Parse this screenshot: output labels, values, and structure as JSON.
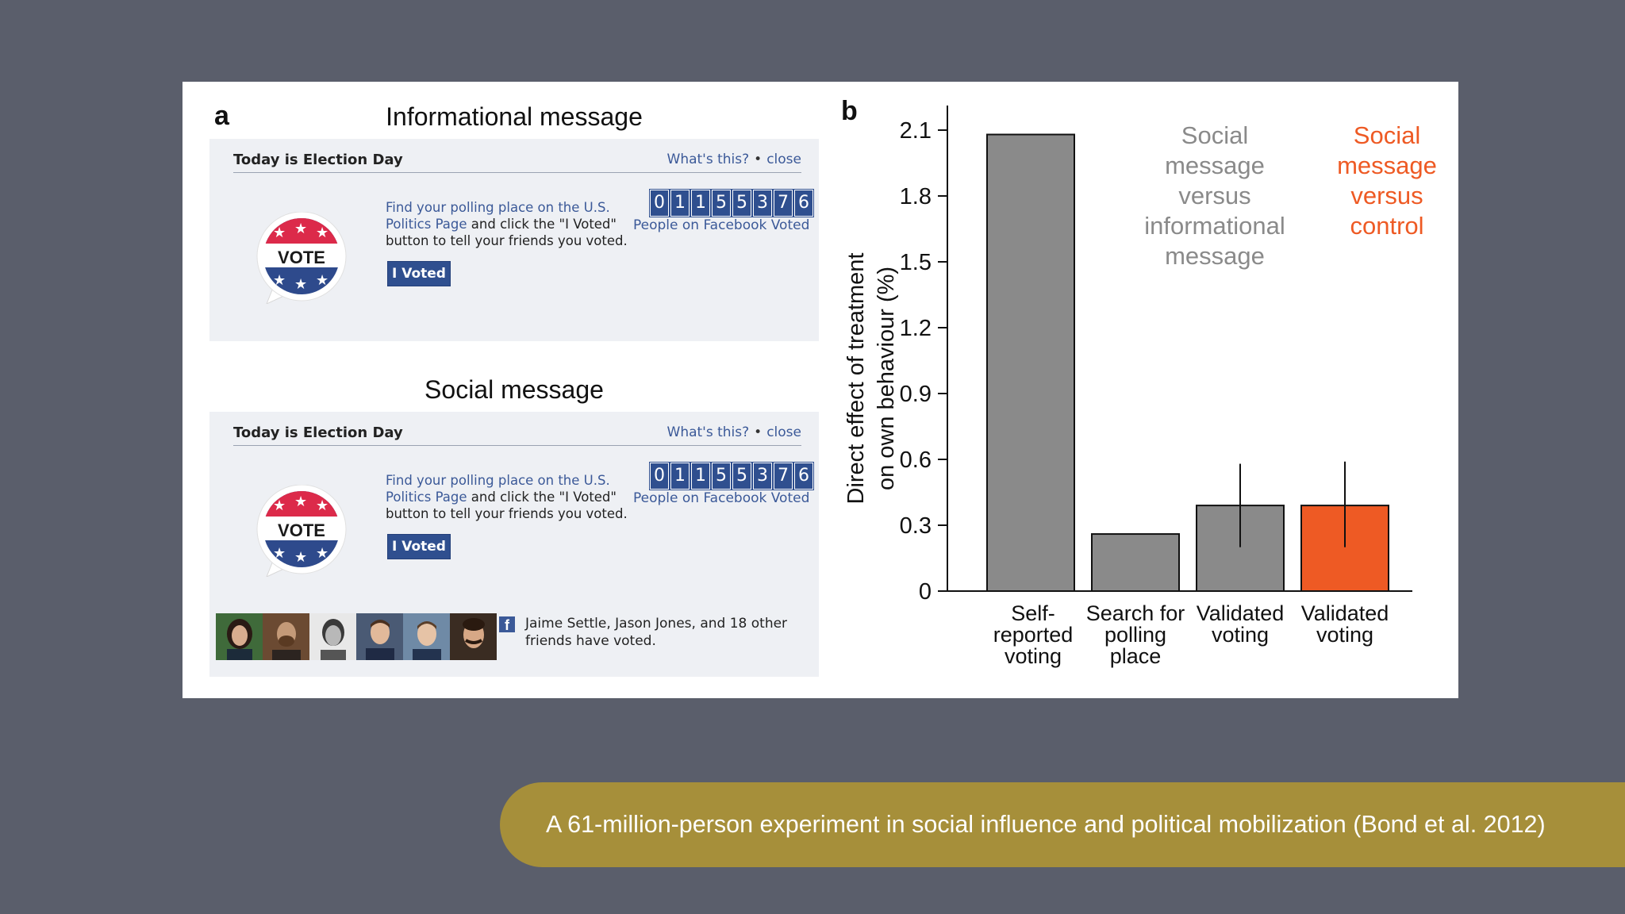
{
  "panel_a": {
    "letter": "a",
    "informational": {
      "title": "Informational message",
      "header": "Today is Election Day",
      "whats_this": "What's this?",
      "close": "close",
      "find_link": "Find your polling place on the U.S. Politics Page",
      "find_rest": " and click the \"I Voted\" button to tell your friends you voted.",
      "button": "I Voted",
      "badge": "VOTE",
      "counter_digits": [
        "0",
        "1",
        "1",
        "5",
        "5",
        "3",
        "7",
        "6"
      ],
      "people_text": "People on Facebook Voted"
    },
    "social": {
      "title": "Social message",
      "header": "Today is Election Day",
      "whats_this": "What's this?",
      "close": "close",
      "find_link": "Find your polling place on the U.S. Politics Page",
      "find_rest": " and click the \"I Voted\" button to tell your friends you voted.",
      "button": "I Voted",
      "badge": "VOTE",
      "counter_digits": [
        "0",
        "1",
        "1",
        "5",
        "5",
        "3",
        "7",
        "6"
      ],
      "people_text": "People on Facebook Voted",
      "friends_text": "Jaime Settle, Jason Jones, and 18 other friends have voted.",
      "fb_icon": "f"
    }
  },
  "chart_data": {
    "type": "bar",
    "panel_letter": "b",
    "categories": [
      [
        "Self-",
        "reported",
        "voting"
      ],
      [
        "Search for",
        "polling",
        "place"
      ],
      [
        "Validated",
        "voting"
      ],
      [
        "Validated",
        "voting"
      ]
    ],
    "values": [
      2.08,
      0.26,
      0.39,
      0.39
    ],
    "error_bars": [
      null,
      null,
      [
        0.2,
        0.58
      ],
      [
        0.2,
        0.59
      ]
    ],
    "bar_colors": [
      "#8a8a8a",
      "#8a8a8a",
      "#8a8a8a",
      "#ee5a24"
    ],
    "ylabel_lines": [
      "Direct effect of treatment",
      "on own behaviour (%)"
    ],
    "yticks": [
      0,
      0.3,
      0.6,
      0.9,
      1.2,
      1.5,
      1.8,
      2.1
    ],
    "ytick_labels": [
      "0",
      "0.3",
      "0.6",
      "0.9",
      "1.2",
      "1.5",
      "1.8",
      "2.1"
    ],
    "ylim": [
      0,
      2.1
    ],
    "annotations": [
      {
        "lines": [
          "Social",
          "message",
          "versus",
          "informational",
          "message"
        ],
        "color": "#8a8a8a"
      },
      {
        "lines": [
          "Social",
          "message",
          "versus",
          "control"
        ],
        "color": "#ee5a24"
      }
    ]
  },
  "caption": "A 61-million-person experiment in social influence and political mobilization (Bond et al. 2012)"
}
